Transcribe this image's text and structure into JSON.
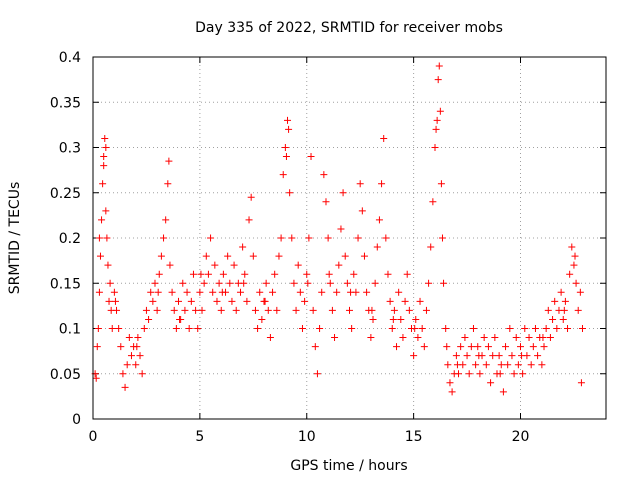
{
  "chart_data": {
    "type": "scatter",
    "title": "Day 335 of 2022, SRMTID for receiver mobs",
    "xlabel": "GPS time / hours",
    "ylabel": "SRMTID / TECUs",
    "xlim": [
      0,
      24
    ],
    "ylim": [
      0,
      0.4
    ],
    "xticks": [
      0,
      5,
      10,
      15,
      20
    ],
    "xtick_labels": [
      "0",
      "5",
      "10",
      "15",
      "20"
    ],
    "yticks": [
      0,
      0.05,
      0.1,
      0.15,
      0.2,
      0.25,
      0.3,
      0.35,
      0.4
    ],
    "ytick_labels": [
      "0",
      "0.05",
      "0.1",
      "0.15",
      "0.2",
      "0.25",
      "0.3",
      "0.35",
      "0.4"
    ],
    "grid": true,
    "marker": "+",
    "color": "#ff0000",
    "series": [
      {
        "name": "mobs",
        "points": [
          [
            0.1,
            0.05
          ],
          [
            0.15,
            0.045
          ],
          [
            0.2,
            0.08
          ],
          [
            0.25,
            0.1
          ],
          [
            0.3,
            0.14
          ],
          [
            0.35,
            0.18
          ],
          [
            0.4,
            0.22
          ],
          [
            0.45,
            0.26
          ],
          [
            0.5,
            0.29
          ],
          [
            0.55,
            0.31
          ],
          [
            0.6,
            0.23
          ],
          [
            0.65,
            0.2
          ],
          [
            0.7,
            0.17
          ],
          [
            0.75,
            0.13
          ],
          [
            0.8,
            0.15
          ],
          [
            0.85,
            0.12
          ],
          [
            0.9,
            0.1
          ],
          [
            1.0,
            0.14
          ],
          [
            1.1,
            0.12
          ],
          [
            1.2,
            0.1
          ],
          [
            1.3,
            0.08
          ],
          [
            1.4,
            0.05
          ],
          [
            1.5,
            0.035
          ],
          [
            1.6,
            0.06
          ],
          [
            1.7,
            0.09
          ],
          [
            1.8,
            0.07
          ],
          [
            1.9,
            0.08
          ],
          [
            2.0,
            0.06
          ],
          [
            2.1,
            0.09
          ],
          [
            2.2,
            0.07
          ],
          [
            2.3,
            0.05
          ],
          [
            2.4,
            0.1
          ],
          [
            2.5,
            0.12
          ],
          [
            2.6,
            0.11
          ],
          [
            2.7,
            0.14
          ],
          [
            2.8,
            0.13
          ],
          [
            2.9,
            0.15
          ],
          [
            3.0,
            0.12
          ],
          [
            3.1,
            0.16
          ],
          [
            3.2,
            0.18
          ],
          [
            3.3,
            0.2
          ],
          [
            3.4,
            0.22
          ],
          [
            3.5,
            0.26
          ],
          [
            3.55,
            0.285
          ],
          [
            3.6,
            0.17
          ],
          [
            3.7,
            0.14
          ],
          [
            3.8,
            0.12
          ],
          [
            3.9,
            0.1
          ],
          [
            4.0,
            0.13
          ],
          [
            4.1,
            0.11
          ],
          [
            4.2,
            0.15
          ],
          [
            4.3,
            0.12
          ],
          [
            4.4,
            0.14
          ],
          [
            4.5,
            0.1
          ],
          [
            4.6,
            0.13
          ],
          [
            4.7,
            0.16
          ],
          [
            4.8,
            0.12
          ],
          [
            4.9,
            0.1
          ],
          [
            5.0,
            0.14
          ],
          [
            5.1,
            0.12
          ],
          [
            5.2,
            0.15
          ],
          [
            5.3,
            0.18
          ],
          [
            5.4,
            0.16
          ],
          [
            5.5,
            0.2
          ],
          [
            5.6,
            0.14
          ],
          [
            5.7,
            0.17
          ],
          [
            5.8,
            0.13
          ],
          [
            5.9,
            0.15
          ],
          [
            6.0,
            0.12
          ],
          [
            6.1,
            0.16
          ],
          [
            6.2,
            0.14
          ],
          [
            6.3,
            0.18
          ],
          [
            6.4,
            0.15
          ],
          [
            6.5,
            0.13
          ],
          [
            6.6,
            0.17
          ],
          [
            6.7,
            0.12
          ],
          [
            6.8,
            0.15
          ],
          [
            6.9,
            0.14
          ],
          [
            7.0,
            0.19
          ],
          [
            7.1,
            0.16
          ],
          [
            7.2,
            0.13
          ],
          [
            7.3,
            0.22
          ],
          [
            7.4,
            0.245
          ],
          [
            7.5,
            0.18
          ],
          [
            7.6,
            0.12
          ],
          [
            7.7,
            0.1
          ],
          [
            7.8,
            0.14
          ],
          [
            7.9,
            0.11
          ],
          [
            8.0,
            0.13
          ],
          [
            8.1,
            0.15
          ],
          [
            8.2,
            0.12
          ],
          [
            8.3,
            0.09
          ],
          [
            8.4,
            0.14
          ],
          [
            8.5,
            0.16
          ],
          [
            8.6,
            0.12
          ],
          [
            8.7,
            0.18
          ],
          [
            8.8,
            0.2
          ],
          [
            8.9,
            0.27
          ],
          [
            9.0,
            0.3
          ],
          [
            9.1,
            0.33
          ],
          [
            9.15,
            0.32
          ],
          [
            9.2,
            0.25
          ],
          [
            9.3,
            0.2
          ],
          [
            9.4,
            0.15
          ],
          [
            9.5,
            0.12
          ],
          [
            9.6,
            0.17
          ],
          [
            9.7,
            0.14
          ],
          [
            9.8,
            0.1
          ],
          [
            9.9,
            0.13
          ],
          [
            10.0,
            0.16
          ],
          [
            10.1,
            0.2
          ],
          [
            10.2,
            0.29
          ],
          [
            10.3,
            0.12
          ],
          [
            10.4,
            0.08
          ],
          [
            10.5,
            0.05
          ],
          [
            10.6,
            0.1
          ],
          [
            10.7,
            0.14
          ],
          [
            10.8,
            0.27
          ],
          [
            10.9,
            0.24
          ],
          [
            11.0,
            0.2
          ],
          [
            11.1,
            0.15
          ],
          [
            11.2,
            0.12
          ],
          [
            11.3,
            0.09
          ],
          [
            11.4,
            0.14
          ],
          [
            11.5,
            0.17
          ],
          [
            11.6,
            0.21
          ],
          [
            11.7,
            0.25
          ],
          [
            11.8,
            0.18
          ],
          [
            11.9,
            0.15
          ],
          [
            12.0,
            0.12
          ],
          [
            12.1,
            0.1
          ],
          [
            12.2,
            0.16
          ],
          [
            12.3,
            0.14
          ],
          [
            12.4,
            0.2
          ],
          [
            12.5,
            0.26
          ],
          [
            12.6,
            0.23
          ],
          [
            12.7,
            0.18
          ],
          [
            12.8,
            0.14
          ],
          [
            12.9,
            0.12
          ],
          [
            13.0,
            0.09
          ],
          [
            13.1,
            0.11
          ],
          [
            13.2,
            0.15
          ],
          [
            13.3,
            0.19
          ],
          [
            13.4,
            0.22
          ],
          [
            13.5,
            0.26
          ],
          [
            13.6,
            0.31
          ],
          [
            13.7,
            0.2
          ],
          [
            13.8,
            0.16
          ],
          [
            13.9,
            0.13
          ],
          [
            14.0,
            0.1
          ],
          [
            14.1,
            0.12
          ],
          [
            14.2,
            0.08
          ],
          [
            14.3,
            0.14
          ],
          [
            14.4,
            0.11
          ],
          [
            14.5,
            0.09
          ],
          [
            14.6,
            0.13
          ],
          [
            14.7,
            0.16
          ],
          [
            14.8,
            0.12
          ],
          [
            14.9,
            0.1
          ],
          [
            15.0,
            0.07
          ],
          [
            15.1,
            0.11
          ],
          [
            15.2,
            0.09
          ],
          [
            15.3,
            0.13
          ],
          [
            15.4,
            0.1
          ],
          [
            15.5,
            0.08
          ],
          [
            15.6,
            0.12
          ],
          [
            15.7,
            0.15
          ],
          [
            15.8,
            0.19
          ],
          [
            15.9,
            0.24
          ],
          [
            16.0,
            0.3
          ],
          [
            16.05,
            0.32
          ],
          [
            16.1,
            0.33
          ],
          [
            16.15,
            0.375
          ],
          [
            16.2,
            0.39
          ],
          [
            16.25,
            0.34
          ],
          [
            16.3,
            0.26
          ],
          [
            16.35,
            0.2
          ],
          [
            16.4,
            0.15
          ],
          [
            16.5,
            0.1
          ],
          [
            16.6,
            0.06
          ],
          [
            16.7,
            0.04
          ],
          [
            16.8,
            0.03
          ],
          [
            16.9,
            0.05
          ],
          [
            17.0,
            0.07
          ],
          [
            17.1,
            0.05
          ],
          [
            17.2,
            0.08
          ],
          [
            17.3,
            0.06
          ],
          [
            17.4,
            0.09
          ],
          [
            17.5,
            0.07
          ],
          [
            17.6,
            0.05
          ],
          [
            17.7,
            0.08
          ],
          [
            17.8,
            0.1
          ],
          [
            17.9,
            0.06
          ],
          [
            18.0,
            0.08
          ],
          [
            18.1,
            0.05
          ],
          [
            18.2,
            0.07
          ],
          [
            18.3,
            0.09
          ],
          [
            18.4,
            0.06
          ],
          [
            18.5,
            0.08
          ],
          [
            18.6,
            0.04
          ],
          [
            18.7,
            0.07
          ],
          [
            18.8,
            0.09
          ],
          [
            18.9,
            0.05
          ],
          [
            19.0,
            0.07
          ],
          [
            19.1,
            0.06
          ],
          [
            19.2,
            0.03
          ],
          [
            19.3,
            0.08
          ],
          [
            19.4,
            0.06
          ],
          [
            19.5,
            0.1
          ],
          [
            19.6,
            0.07
          ],
          [
            19.7,
            0.05
          ],
          [
            19.8,
            0.09
          ],
          [
            19.9,
            0.06
          ],
          [
            20.0,
            0.08
          ],
          [
            20.1,
            0.05
          ],
          [
            20.2,
            0.1
          ],
          [
            20.3,
            0.07
          ],
          [
            20.4,
            0.09
          ],
          [
            20.5,
            0.06
          ],
          [
            20.6,
            0.08
          ],
          [
            20.7,
            0.1
          ],
          [
            20.8,
            0.07
          ],
          [
            20.9,
            0.09
          ],
          [
            21.0,
            0.06
          ],
          [
            21.1,
            0.08
          ],
          [
            21.2,
            0.1
          ],
          [
            21.3,
            0.12
          ],
          [
            21.4,
            0.09
          ],
          [
            21.5,
            0.11
          ],
          [
            21.6,
            0.13
          ],
          [
            21.7,
            0.1
          ],
          [
            21.8,
            0.12
          ],
          [
            21.9,
            0.14
          ],
          [
            22.0,
            0.11
          ],
          [
            22.1,
            0.13
          ],
          [
            22.2,
            0.1
          ],
          [
            22.3,
            0.16
          ],
          [
            22.4,
            0.19
          ],
          [
            22.5,
            0.17
          ],
          [
            22.6,
            0.15
          ],
          [
            22.7,
            0.12
          ],
          [
            22.8,
            0.14
          ],
          [
            22.85,
            0.04
          ],
          [
            22.9,
            0.1
          ],
          [
            0.3,
            0.2
          ],
          [
            0.5,
            0.28
          ],
          [
            0.6,
            0.3
          ],
          [
            1.05,
            0.13
          ],
          [
            2.05,
            0.08
          ],
          [
            3.05,
            0.14
          ],
          [
            4.05,
            0.11
          ],
          [
            5.05,
            0.16
          ],
          [
            6.05,
            0.14
          ],
          [
            7.05,
            0.15
          ],
          [
            8.05,
            0.13
          ],
          [
            9.05,
            0.29
          ],
          [
            10.05,
            0.15
          ],
          [
            11.05,
            0.16
          ],
          [
            12.05,
            0.14
          ],
          [
            13.05,
            0.12
          ],
          [
            14.05,
            0.11
          ],
          [
            15.05,
            0.1
          ],
          [
            16.55,
            0.08
          ],
          [
            17.05,
            0.06
          ],
          [
            18.05,
            0.07
          ],
          [
            19.05,
            0.05
          ],
          [
            20.05,
            0.07
          ],
          [
            21.05,
            0.09
          ],
          [
            22.05,
            0.12
          ],
          [
            22.55,
            0.18
          ]
        ]
      }
    ]
  }
}
